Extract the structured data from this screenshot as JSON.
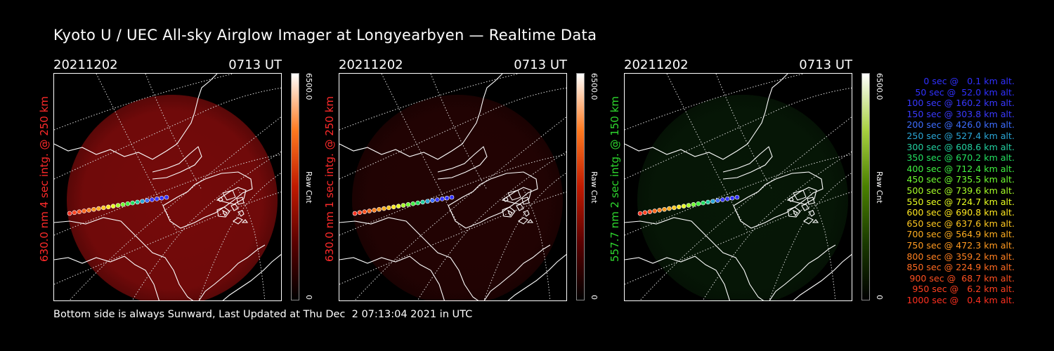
{
  "title": "Kyoto U / UEC All-sky Airglow Imager at Longyearbyen — Realtime Data",
  "footer": "Bottom side is always Sunward, Last Updated at Thu Dec  2 07:13:04 2021 in UTC",
  "panels": [
    {
      "date": "20211202",
      "time": "0713 UT",
      "side_label": "630.0 nm 4 sec intg. @ 250 km",
      "label_color": "#ff2a2a",
      "colorbar_max": "6500.0",
      "colorbar_min": "0",
      "colorbar_unit": "Raw Cnt",
      "glow_color": "#8a0c0c",
      "glow_intensity": 0.85,
      "colorbar_scheme": "red"
    },
    {
      "date": "20211202",
      "time": "0713 UT",
      "side_label": "630.0 nm 1 sec intg. @ 250 km",
      "label_color": "#ff2a2a",
      "colorbar_max": "6500.0",
      "colorbar_min": "0",
      "colorbar_unit": "Raw Cnt",
      "glow_color": "#3a0505",
      "glow_intensity": 0.6,
      "colorbar_scheme": "red"
    },
    {
      "date": "20211202",
      "time": "0713 UT",
      "side_label": "557.7 nm 2 sec intg. @ 150 km",
      "label_color": "#2ed82e",
      "colorbar_max": "6500.0",
      "colorbar_min": "0",
      "colorbar_unit": "Raw Cnt",
      "glow_color": "#0b2a0b",
      "glow_intensity": 0.55,
      "colorbar_scheme": "green"
    }
  ],
  "legend": [
    {
      "text": "0 sec @   0.1 km alt.",
      "color": "#3030ff"
    },
    {
      "text": "50 sec @  52.0 km alt.",
      "color": "#3030ff"
    },
    {
      "text": "100 sec @ 160.2 km alt.",
      "color": "#3838ff"
    },
    {
      "text": "150 sec @ 303.8 km alt.",
      "color": "#3a3aff"
    },
    {
      "text": "200 sec @ 426.0 km alt.",
      "color": "#3d6dff"
    },
    {
      "text": "250 sec @ 527.4 km alt.",
      "color": "#2aa6d6"
    },
    {
      "text": "300 sec @ 608.6 km alt.",
      "color": "#22d0a0"
    },
    {
      "text": "350 sec @ 670.2 km alt.",
      "color": "#22e060"
    },
    {
      "text": "400 sec @ 712.4 km alt.",
      "color": "#40f040"
    },
    {
      "text": "450 sec @ 735.5 km alt.",
      "color": "#70ff30"
    },
    {
      "text": "500 sec @ 739.6 km alt.",
      "color": "#a8ff28"
    },
    {
      "text": "550 sec @ 724.7 km alt.",
      "color": "#e8ff20"
    },
    {
      "text": "600 sec @ 690.8 km alt.",
      "color": "#ffe820"
    },
    {
      "text": "650 sec @ 637.6 km alt.",
      "color": "#ffc820"
    },
    {
      "text": "700 sec @ 564.9 km alt.",
      "color": "#ffae20"
    },
    {
      "text": "750 sec @ 472.3 km alt.",
      "color": "#ff9a20"
    },
    {
      "text": "800 sec @ 359.2 km alt.",
      "color": "#ff8020"
    },
    {
      "text": "850 sec @ 224.9 km alt.",
      "color": "#ff6a20"
    },
    {
      "text": "900 sec @  68.7 km alt.",
      "color": "#ff5020"
    },
    {
      "text": "950 sec @   6.2 km alt.",
      "color": "#ff4020"
    },
    {
      "text": "1000 sec @   0.4 km alt.",
      "color": "#ff3020"
    }
  ]
}
